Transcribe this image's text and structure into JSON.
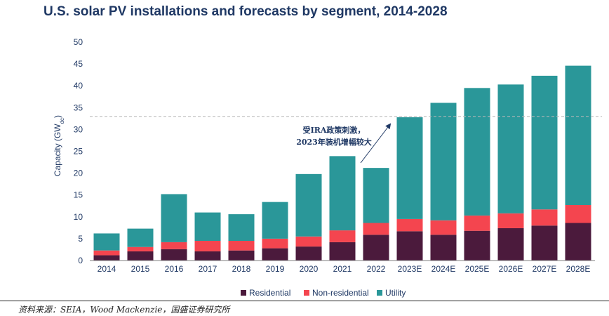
{
  "chart_data": {
    "type": "bar",
    "stacked": true,
    "title": "U.S. solar PV installations and forecasts by segment, 2014-2028",
    "ylabel": "Capacity (GW",
    "ylabel_sub": "dc",
    "ylabel_close": ")",
    "xlabel": "",
    "ylim": [
      0,
      50
    ],
    "yticks": [
      0,
      5,
      10,
      15,
      20,
      25,
      30,
      35,
      40,
      45,
      50
    ],
    "grid": false,
    "legend_position": "bottom",
    "categories": [
      "2014",
      "2015",
      "2016",
      "2017",
      "2018",
      "2019",
      "2020",
      "2021",
      "2022",
      "2023E",
      "2024E",
      "2025E",
      "2026E",
      "2027E",
      "2028E"
    ],
    "series": [
      {
        "name": "Residential",
        "color": "#4b1a3c",
        "values": [
          1.2,
          2.1,
          2.6,
          2.1,
          2.3,
          2.8,
          3.2,
          4.2,
          5.9,
          6.7,
          5.9,
          6.8,
          7.4,
          8.0,
          8.6
        ]
      },
      {
        "name": "Non-residential",
        "color": "#f4454f",
        "values": [
          1.1,
          1.0,
          1.6,
          2.4,
          2.2,
          2.2,
          2.3,
          2.7,
          2.7,
          2.8,
          3.3,
          3.5,
          3.4,
          3.7,
          4.1
        ]
      },
      {
        "name": "Utility",
        "color": "#2a9799",
        "values": [
          3.9,
          4.2,
          11.0,
          6.5,
          6.1,
          8.4,
          14.3,
          17.0,
          12.6,
          23.3,
          26.9,
          29.2,
          29.5,
          30.6,
          31.9
        ]
      }
    ],
    "reference_line": {
      "value": 33,
      "style": "dashed"
    },
    "annotation": {
      "lines": [
        "受IRA政策刺激，",
        "2023年装机增幅较大"
      ],
      "arrow_target_category": "2023E"
    }
  },
  "source_note": "资料来源：SEIA，Wood Mackenzie，国盛证券研究所"
}
